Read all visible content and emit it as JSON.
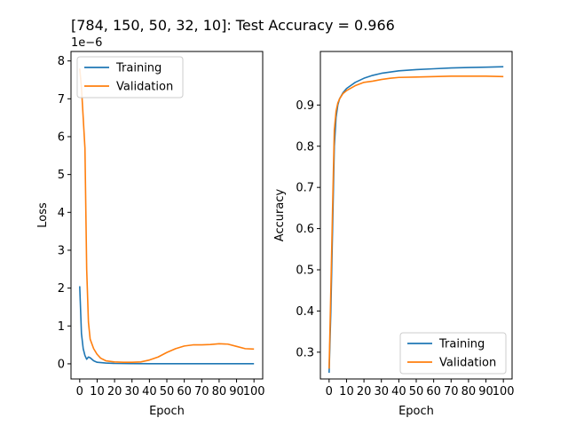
{
  "figure": {
    "title": "[784, 150, 50, 32, 10]: Test Accuracy = 0.966"
  },
  "colors": {
    "training": "#1f77b4",
    "validation": "#ff7f0e"
  },
  "chart_data": [
    {
      "type": "line",
      "xlabel": "Epoch",
      "ylabel": "Loss",
      "offset_label": "1e−6",
      "xlim": [
        -5,
        105
      ],
      "ylim": [
        -0.4,
        8.25
      ],
      "xticks": [
        0,
        10,
        20,
        30,
        40,
        50,
        60,
        70,
        80,
        90,
        100
      ],
      "yticks": [
        0,
        1,
        2,
        3,
        4,
        5,
        6,
        7,
        8
      ],
      "legend": "upper-left",
      "series": [
        {
          "name": "Training",
          "color_key": "training",
          "x": [
            0,
            1,
            2,
            3,
            4,
            5,
            6,
            8,
            10,
            15,
            20,
            30,
            40,
            50,
            60,
            70,
            80,
            90,
            100
          ],
          "y": [
            2.05,
            0.8,
            0.4,
            0.22,
            0.12,
            0.18,
            0.16,
            0.08,
            0.04,
            0.02,
            0.01,
            0.005,
            0.003,
            0.003,
            0.002,
            0.002,
            0.002,
            0.002,
            0.002
          ]
        },
        {
          "name": "Validation",
          "color_key": "validation",
          "x": [
            0,
            1,
            2,
            3,
            4,
            5,
            6,
            8,
            10,
            12,
            15,
            20,
            25,
            30,
            35,
            40,
            45,
            50,
            55,
            60,
            65,
            70,
            75,
            80,
            85,
            90,
            95,
            100
          ],
          "y": [
            7.8,
            7.3,
            6.5,
            5.7,
            2.5,
            1.1,
            0.65,
            0.4,
            0.25,
            0.15,
            0.08,
            0.05,
            0.04,
            0.04,
            0.05,
            0.1,
            0.18,
            0.3,
            0.4,
            0.47,
            0.5,
            0.5,
            0.51,
            0.53,
            0.52,
            0.46,
            0.4,
            0.39
          ]
        }
      ]
    },
    {
      "type": "line",
      "xlabel": "Epoch",
      "ylabel": "Accuracy",
      "xlim": [
        -5,
        105
      ],
      "ylim": [
        0.235,
        1.03
      ],
      "xticks": [
        0,
        10,
        20,
        30,
        40,
        50,
        60,
        70,
        80,
        90,
        100
      ],
      "yticks": [
        0.3,
        0.4,
        0.5,
        0.6,
        0.7,
        0.8,
        0.9
      ],
      "legend": "lower-right",
      "series": [
        {
          "name": "Training",
          "color_key": "training",
          "x": [
            0,
            1,
            2,
            3,
            4,
            5,
            6,
            8,
            10,
            15,
            20,
            25,
            30,
            40,
            50,
            60,
            70,
            80,
            90,
            100
          ],
          "y": [
            0.25,
            0.4,
            0.6,
            0.8,
            0.87,
            0.9,
            0.915,
            0.93,
            0.94,
            0.955,
            0.965,
            0.972,
            0.977,
            0.983,
            0.986,
            0.988,
            0.99,
            0.991,
            0.992,
            0.993
          ]
        },
        {
          "name": "Validation",
          "color_key": "validation",
          "x": [
            0,
            1,
            2,
            3,
            4,
            5,
            6,
            8,
            10,
            15,
            20,
            25,
            30,
            35,
            40,
            50,
            60,
            70,
            80,
            90,
            100
          ],
          "y": [
            0.26,
            0.45,
            0.65,
            0.84,
            0.885,
            0.905,
            0.915,
            0.928,
            0.935,
            0.947,
            0.955,
            0.958,
            0.962,
            0.965,
            0.967,
            0.968,
            0.969,
            0.97,
            0.97,
            0.97,
            0.969
          ]
        }
      ]
    }
  ]
}
